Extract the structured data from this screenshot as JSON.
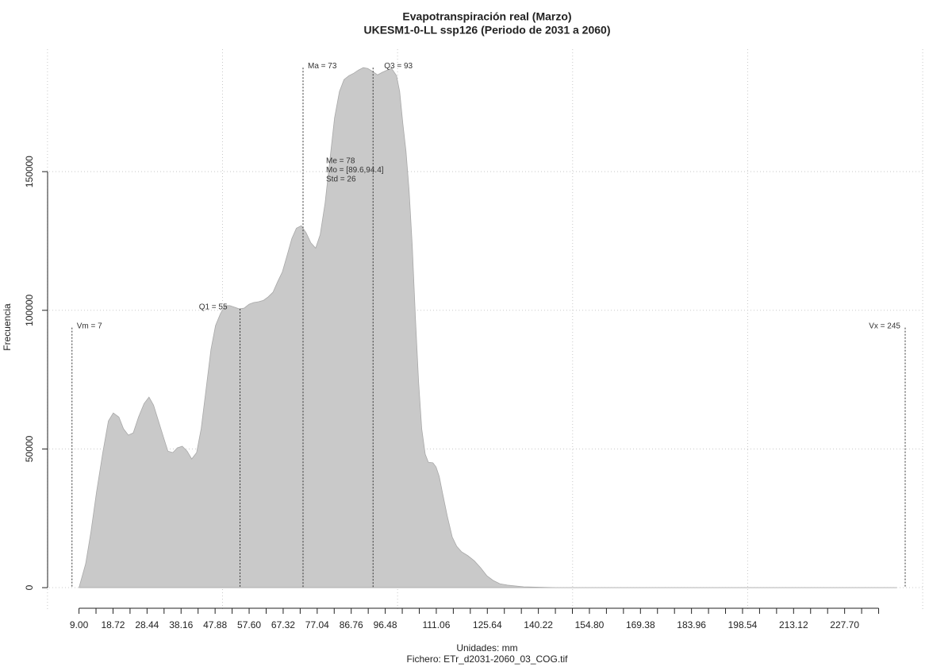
{
  "chart_data": {
    "type": "area",
    "title": "Evapotranspiración real (Marzo)",
    "subtitle": "UKESM1-0-LL ssp126 (Periodo de 2031 a 2060)",
    "xlabel": "Unidades: mm",
    "caption": "Fichero: ETr_d2031-2060_03_COG.tif",
    "ylabel": "Frecuencia",
    "color": "#c9c9c9",
    "x": [
      9.0,
      10.9,
      12.4,
      14.0,
      15.8,
      17.4,
      18.8,
      20.4,
      21.7,
      23.1,
      24.5,
      26.0,
      27.6,
      29.0,
      30.3,
      31.7,
      33.1,
      34.4,
      35.8,
      37.1,
      38.5,
      39.9,
      41.2,
      42.6,
      43.9,
      45.3,
      46.7,
      48.0,
      49.4,
      50.7,
      52.1,
      53.5,
      54.8,
      56.2,
      57.6,
      58.9,
      60.3,
      61.7,
      63.0,
      64.4,
      65.7,
      67.1,
      68.4,
      69.8,
      71.1,
      72.5,
      73.9,
      75.2,
      76.6,
      77.9,
      79.3,
      80.7,
      82.0,
      83.4,
      84.7,
      86.1,
      87.5,
      88.8,
      90.2,
      91.5,
      92.9,
      94.3,
      95.6,
      97.0,
      98.3,
      99.7,
      100.6,
      101.5,
      102.4,
      103.3,
      104.2,
      105.1,
      106.0,
      106.9,
      107.9,
      108.8,
      110.1,
      111.0,
      111.9,
      112.8,
      114.2,
      115.6,
      116.9,
      118.3,
      120.1,
      121.9,
      123.7,
      125.5,
      127.3,
      129.2,
      131.4,
      136.0,
      145.0,
      167.7,
      213.0,
      242.5
    ],
    "values": [
      0,
      8600,
      20000,
      34400,
      48700,
      60100,
      63000,
      61500,
      57300,
      55000,
      55800,
      61500,
      66400,
      68700,
      65800,
      60100,
      54400,
      49200,
      48700,
      50400,
      51000,
      49200,
      46400,
      48700,
      57300,
      71600,
      85900,
      94500,
      98800,
      101700,
      101700,
      101100,
      100500,
      100800,
      102200,
      102800,
      103100,
      103600,
      104800,
      106500,
      110200,
      113900,
      119600,
      125900,
      129600,
      130500,
      127900,
      124400,
      122400,
      127300,
      138700,
      154600,
      169400,
      178900,
      183200,
      184600,
      185500,
      186600,
      187500,
      187200,
      186100,
      184900,
      185800,
      186600,
      187200,
      184600,
      178900,
      167400,
      157400,
      143100,
      123100,
      97300,
      74400,
      57300,
      48100,
      45200,
      45000,
      43500,
      40100,
      34400,
      25800,
      18300,
      14900,
      12900,
      11500,
      9700,
      7200,
      4300,
      2600,
      1400,
      900,
      300,
      0,
      0,
      0,
      0
    ],
    "xlim": [
      -4.5,
      253.5
    ],
    "ylim": [
      -8000,
      195000
    ],
    "xticks": [
      {
        "value": 9,
        "label": "9.00"
      },
      18.72,
      28.44,
      38.16,
      47.88,
      {
        "value": 57.6,
        "label": "57.60"
      },
      67.32,
      77.04,
      86.76,
      96.48,
      111.06,
      125.64,
      140.22,
      {
        "value": 154.8,
        "label": "154.80"
      },
      169.38,
      183.96,
      198.54,
      213.12,
      {
        "value": 227.7,
        "label": "227.70"
      }
    ],
    "xminorticks": [
      13.86,
      23.58,
      33.3,
      43.02,
      52.74,
      62.46,
      72.18,
      81.9,
      91.62,
      101.34,
      106.2,
      115.92,
      120.78,
      130.5,
      135.36,
      145.08,
      149.94,
      159.66,
      164.52,
      174.24,
      179.1,
      188.82,
      193.68,
      203.4,
      208.26,
      217.98,
      222.84,
      232.56,
      237.42
    ],
    "yticks": [
      0,
      50000,
      100000,
      150000
    ],
    "xgrid": [
      0,
      50,
      100,
      150,
      200,
      250
    ],
    "grid": true,
    "annotations": [
      {
        "label": "Vm = 7",
        "value": 7
      },
      {
        "label": "Q1 = 55",
        "value": 55
      },
      {
        "label": "Ma = 73",
        "value": 73
      },
      {
        "label": "Q3 = 93",
        "value": 93
      },
      {
        "label": "Vx = 245",
        "value": 245
      }
    ],
    "stats": [
      "Me = 78",
      "Mo = [89.6,94.4]",
      "Std = 26"
    ]
  }
}
